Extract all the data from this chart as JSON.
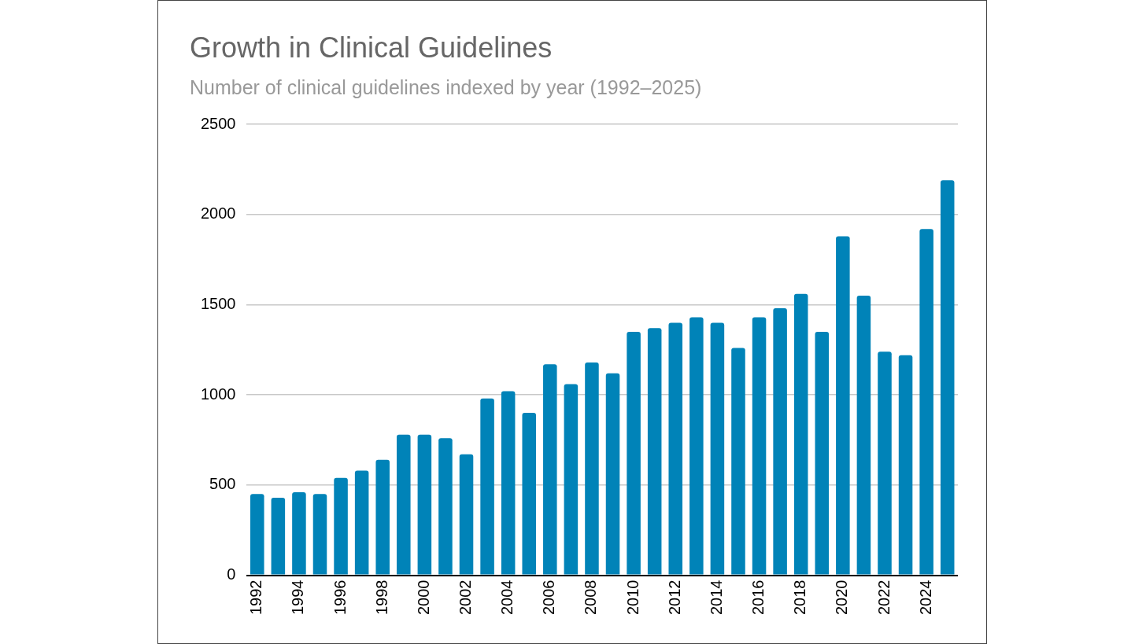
{
  "chart_data": {
    "type": "bar",
    "title": "Growth in Clinical Guidelines",
    "subtitle": "Number of clinical guidelines indexed by year (1992–2025)",
    "categories": [
      "1992",
      null,
      "1994",
      null,
      "1996",
      null,
      "1998",
      null,
      "2000",
      null,
      "2002",
      null,
      "2004",
      null,
      "2006",
      null,
      "2008",
      null,
      "2010",
      null,
      "2012",
      null,
      "2014",
      null,
      "2016",
      null,
      "2018",
      null,
      "2020",
      null,
      "2022",
      null,
      "2024",
      null
    ],
    "values": [
      450,
      430,
      460,
      450,
      540,
      580,
      640,
      780,
      780,
      760,
      670,
      980,
      1020,
      900,
      1170,
      1060,
      1180,
      1120,
      1350,
      1370,
      1400,
      1430,
      1400,
      1260,
      1430,
      1480,
      1560,
      1350,
      1880,
      1550,
      1240,
      1220,
      1920,
      2190
    ],
    "color": "#0083b8",
    "ylim": [
      0,
      2500
    ],
    "yticks": [
      0,
      500,
      1000,
      1500,
      2000,
      2500
    ],
    "grid": "y",
    "legend": false
  }
}
